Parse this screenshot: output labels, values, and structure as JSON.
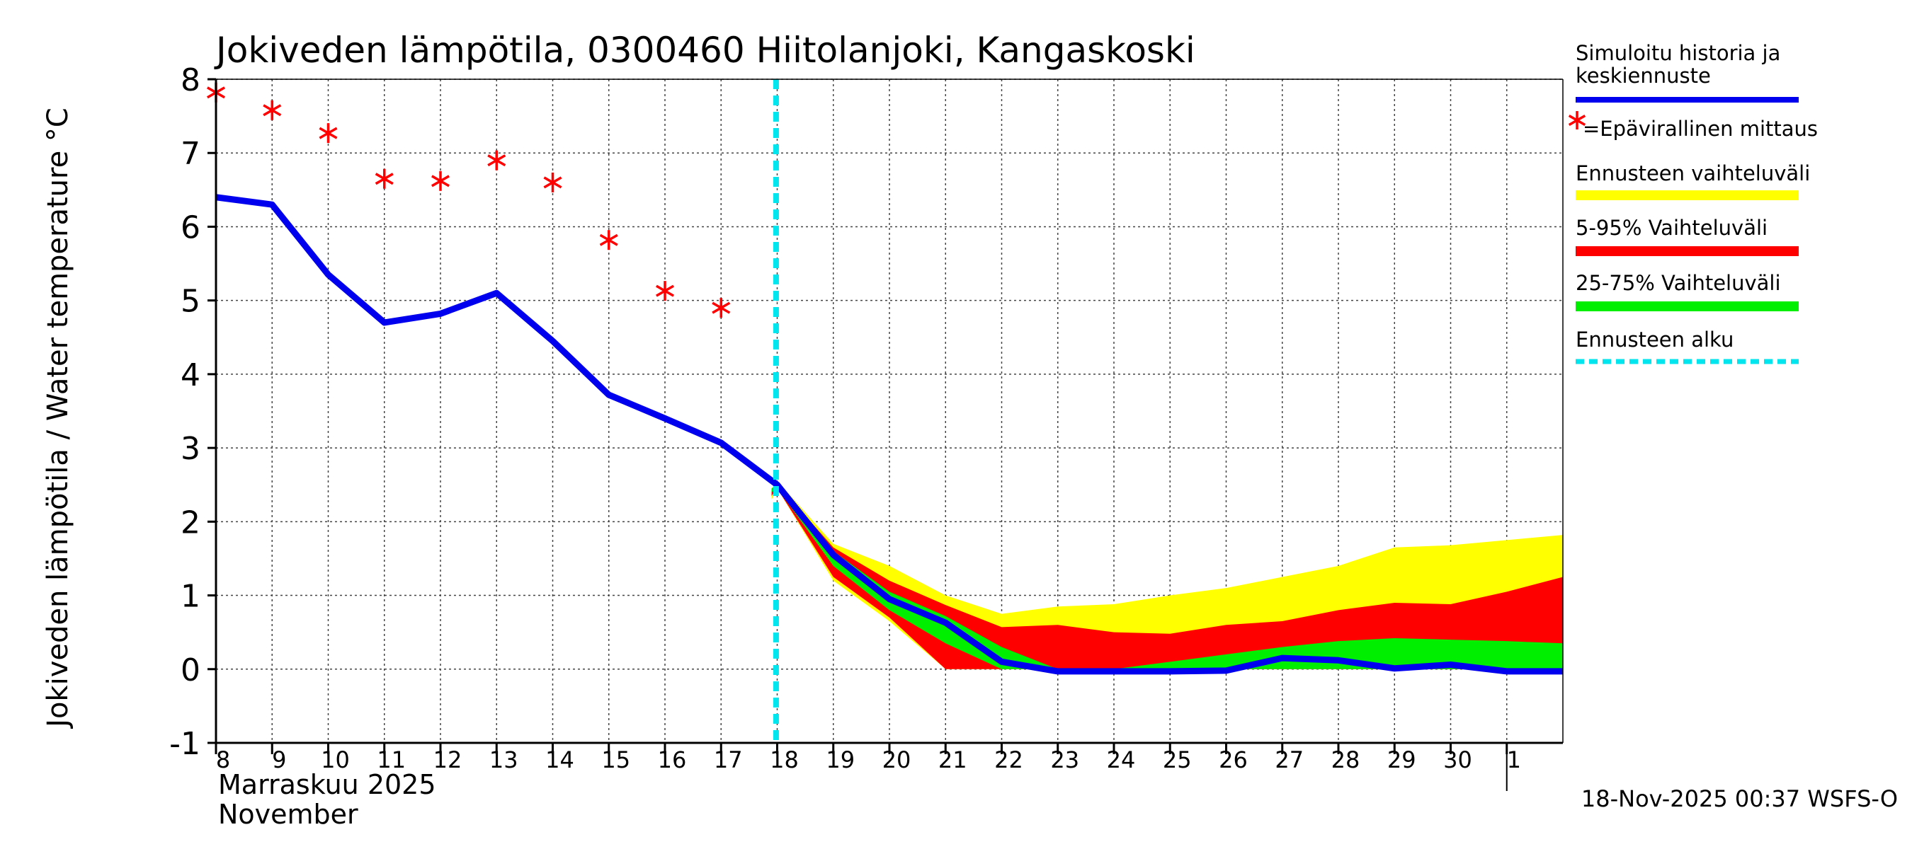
{
  "chart_data": {
    "type": "area",
    "title": "Jokiveden lämpötila, 0300460 Hiitolanjoki, Kangaskoski",
    "ylabel": "Jokiveden lämpötila / Water temperature   °C",
    "ylim": [
      -1,
      8
    ],
    "yticks": [
      "-1",
      "0",
      "1",
      "2",
      "3",
      "4",
      "5",
      "6",
      "7",
      "8"
    ],
    "x_days": [
      8,
      9,
      10,
      11,
      12,
      13,
      14,
      15,
      16,
      17,
      18,
      19,
      20,
      21,
      22,
      23,
      24,
      25,
      26,
      27,
      28,
      29,
      30,
      31,
      32
    ],
    "x_tick_labels": [
      "8",
      "9",
      "10",
      "11",
      "12",
      "13",
      "14",
      "15",
      "16",
      "17",
      "18",
      "19",
      "20",
      "21",
      "22",
      "23",
      "24",
      "25",
      "26",
      "27",
      "28",
      "29",
      "30",
      "1"
    ],
    "x_range": [
      8,
      32
    ],
    "month_label_fi": "Marraskuu 2025",
    "month_label_en": "November",
    "forecast_start_day": 17.98,
    "colors": {
      "simulated": "#0000ee",
      "observed": "#ff0000",
      "range_full": "#ffff00",
      "range_5_95": "#ff0000",
      "range_25_75": "#00ee00",
      "forecast_start": "#00e5ee"
    },
    "series": [
      {
        "name": "Simuloitu historia ja keskiennuste",
        "x": [
          8,
          9,
          10,
          11,
          12,
          13,
          14,
          15,
          16,
          17,
          18,
          19,
          20,
          21,
          22,
          23,
          24,
          25,
          26,
          27,
          28,
          29,
          30,
          31,
          32
        ],
        "values": [
          6.4,
          6.3,
          5.35,
          4.7,
          4.82,
          5.1,
          4.45,
          3.72,
          3.4,
          3.07,
          2.5,
          1.55,
          0.95,
          0.63,
          0.1,
          -0.03,
          -0.03,
          -0.03,
          -0.02,
          0.15,
          0.12,
          0.01,
          0.06,
          -0.03,
          -0.03
        ]
      },
      {
        "name": "Epävirallinen mittaus",
        "x": [
          8,
          9,
          10,
          11,
          12,
          13,
          14,
          15,
          16,
          17
        ],
        "values": [
          7.82,
          7.58,
          7.27,
          6.65,
          6.62,
          6.9,
          6.6,
          5.82,
          5.13,
          4.9
        ]
      }
    ],
    "bands": [
      {
        "name": "Ennusteen vaihteluväli",
        "x": [
          17.9,
          18,
          19,
          20,
          21,
          22,
          23,
          24,
          25,
          26,
          27,
          28,
          29,
          30,
          31,
          32
        ],
        "upper": [
          2.45,
          2.55,
          1.7,
          1.4,
          1.0,
          0.75,
          0.85,
          0.88,
          1.0,
          1.1,
          1.25,
          1.4,
          1.65,
          1.68,
          1.75,
          1.82
        ],
        "lower": [
          2.3,
          2.45,
          1.2,
          0.65,
          0.0,
          0.0,
          0.0,
          0.0,
          0.0,
          0.0,
          0.0,
          0.0,
          0.0,
          0.0,
          0.0,
          0.0
        ]
      },
      {
        "name": "5-95% Vaihteluväli",
        "x": [
          17.9,
          18,
          19,
          20,
          21,
          22,
          23,
          24,
          25,
          26,
          27,
          28,
          29,
          30,
          31,
          32
        ],
        "upper": [
          2.42,
          2.52,
          1.65,
          1.2,
          0.87,
          0.57,
          0.6,
          0.5,
          0.48,
          0.6,
          0.65,
          0.8,
          0.9,
          0.88,
          1.05,
          1.25
        ],
        "lower": [
          2.35,
          2.45,
          1.25,
          0.7,
          0.0,
          0.0,
          0.0,
          0.0,
          0.0,
          0.0,
          0.0,
          0.0,
          0.0,
          0.0,
          0.0,
          0.0
        ]
      },
      {
        "name": "25-75% Vaihteluväli",
        "x": [
          17.9,
          18,
          19,
          20,
          21,
          22,
          23,
          24,
          25,
          26,
          27,
          28,
          29,
          30,
          31,
          32
        ],
        "upper": [
          2.45,
          2.5,
          1.6,
          1.05,
          0.72,
          0.3,
          0.0,
          0.0,
          0.1,
          0.2,
          0.3,
          0.38,
          0.42,
          0.4,
          0.38,
          0.35
        ],
        "lower": [
          2.4,
          2.45,
          1.4,
          0.8,
          0.35,
          0.0,
          0.0,
          0.0,
          0.0,
          0.0,
          0.0,
          0.0,
          0.0,
          0.0,
          0.0,
          0.0
        ]
      }
    ],
    "legend": {
      "position": "right",
      "items": [
        {
          "label_lines": [
            "Simuloitu historia ja",
            "keskiennuste"
          ],
          "kind": "line"
        },
        {
          "label_lines": [
            "=Epävirallinen mittaus"
          ],
          "kind": "star"
        },
        {
          "label_lines": [
            "Ennusteen vaihteluväli"
          ],
          "kind": "yellow"
        },
        {
          "label_lines": [
            "5-95% Vaihteluväli"
          ],
          "kind": "red"
        },
        {
          "label_lines": [
            "25-75% Vaihteluväli"
          ],
          "kind": "green"
        },
        {
          "label_lines": [
            "Ennusteen alku"
          ],
          "kind": "dash"
        }
      ]
    },
    "timestamp": "18-Nov-2025 00:37 WSFS-O"
  }
}
